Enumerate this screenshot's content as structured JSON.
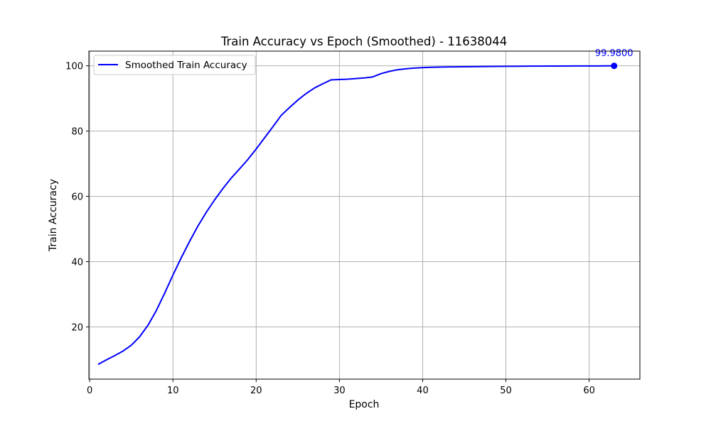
{
  "chart_data": {
    "type": "line",
    "title": "Train Accuracy vs Epoch (Smoothed) - 11638044",
    "xlabel": "Epoch",
    "ylabel": "Train Accuracy",
    "xlim": [
      -0.1,
      66.1
    ],
    "ylim": [
      4.0,
      104.5
    ],
    "xticks": [
      0,
      10,
      20,
      30,
      40,
      50,
      60
    ],
    "yticks": [
      20,
      40,
      60,
      80,
      100
    ],
    "grid": true,
    "legend_position": "top-left",
    "series": [
      {
        "name": "Smoothed Train Accuracy",
        "color": "#0000ff",
        "x": [
          1,
          2,
          3,
          4,
          5,
          6,
          7,
          8,
          9,
          10,
          11,
          12,
          13,
          14,
          15,
          16,
          17,
          18,
          19,
          20,
          21,
          22,
          23,
          24,
          25,
          26,
          27,
          28,
          29,
          30,
          31,
          32,
          33,
          34,
          35,
          36,
          37,
          38,
          39,
          40,
          41,
          42,
          43,
          44,
          45,
          46,
          47,
          48,
          49,
          50,
          51,
          52,
          53,
          54,
          55,
          56,
          57,
          58,
          59,
          60,
          61,
          62,
          63
        ],
        "y": [
          8.5,
          9.9,
          11.2,
          12.6,
          14.4,
          17.0,
          20.5,
          25.0,
          30.3,
          35.9,
          41.2,
          46.2,
          50.9,
          55.1,
          58.9,
          62.4,
          65.6,
          68.4,
          71.3,
          74.5,
          77.9,
          81.3,
          84.8,
          87.2,
          89.5,
          91.5,
          93.2,
          94.5,
          95.7,
          95.8,
          95.9,
          96.1,
          96.3,
          96.6,
          97.6,
          98.3,
          98.8,
          99.1,
          99.3,
          99.45,
          99.55,
          99.6,
          99.65,
          99.7,
          99.72,
          99.75,
          99.77,
          99.8,
          99.82,
          99.84,
          99.86,
          99.88,
          99.9,
          99.91,
          99.92,
          99.93,
          99.94,
          99.95,
          99.96,
          99.97,
          99.97,
          99.98,
          99.98
        ]
      }
    ],
    "annotation": {
      "text": "99.9800",
      "x": 63,
      "y": 99.98,
      "color": "#0000ff"
    }
  }
}
